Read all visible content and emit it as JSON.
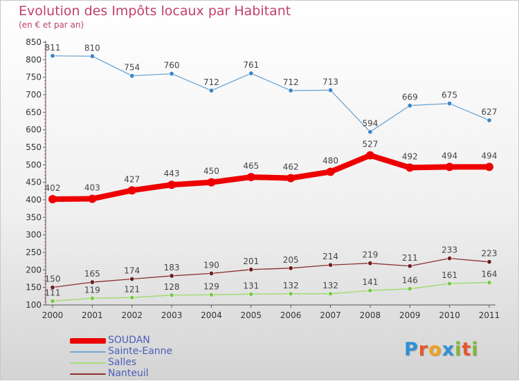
{
  "header": {
    "title": "Evolution des Impôts locaux par Habitant",
    "subtitle": "(en € et par an)"
  },
  "colors": {
    "title": "#c0406a",
    "legend_text": "#4a5fb8",
    "axis": "#555555"
  },
  "logo": {
    "text": "Proxiti",
    "letter_colors": [
      "#2f8fd6",
      "#e8552a",
      "#f0a020",
      "#2f8fd6",
      "#7fb830",
      "#e8552a",
      "#7fb830"
    ]
  },
  "chart_data": {
    "type": "line",
    "title": "Evolution des Impôts locaux par Habitant",
    "subtitle": "(en € et par an)",
    "xlabel": "",
    "ylabel": "",
    "categories": [
      "2000",
      "2001",
      "2002",
      "2003",
      "2004",
      "2005",
      "2006",
      "2007",
      "2008",
      "2009",
      "2010",
      "2011"
    ],
    "ylim": [
      100,
      850
    ],
    "yticks": [
      100,
      150,
      200,
      250,
      300,
      350,
      400,
      450,
      500,
      550,
      600,
      650,
      700,
      750,
      800,
      850
    ],
    "grid": false,
    "legend_position": "bottom-left",
    "series": [
      {
        "name": "SOUDAN",
        "color": "#ee0000",
        "marker": "#ee0000",
        "width": 8,
        "marker_r": 6,
        "values": [
          402,
          403,
          427,
          443,
          450,
          465,
          462,
          480,
          527,
          492,
          494,
          494
        ]
      },
      {
        "name": "Sainte-Eanne",
        "color": "#6ea6d4",
        "marker": "#3a86c8",
        "width": 1.3,
        "marker_r": 3.2,
        "values": [
          811,
          810,
          754,
          760,
          712,
          761,
          712,
          713,
          594,
          669,
          675,
          627
        ]
      },
      {
        "name": "Salles",
        "color": "#a6dc78",
        "marker": "#7cc84a",
        "width": 1.6,
        "marker_r": 3.2,
        "values": [
          111,
          119,
          121,
          128,
          129,
          131,
          132,
          132,
          141,
          146,
          161,
          164
        ]
      },
      {
        "name": "Nanteuil",
        "color": "#8a2e2e",
        "marker": "#6e1e1e",
        "width": 1.3,
        "marker_r": 3.2,
        "values": [
          150,
          165,
          174,
          183,
          190,
          201,
          205,
          214,
          219,
          211,
          233,
          223
        ]
      }
    ]
  }
}
